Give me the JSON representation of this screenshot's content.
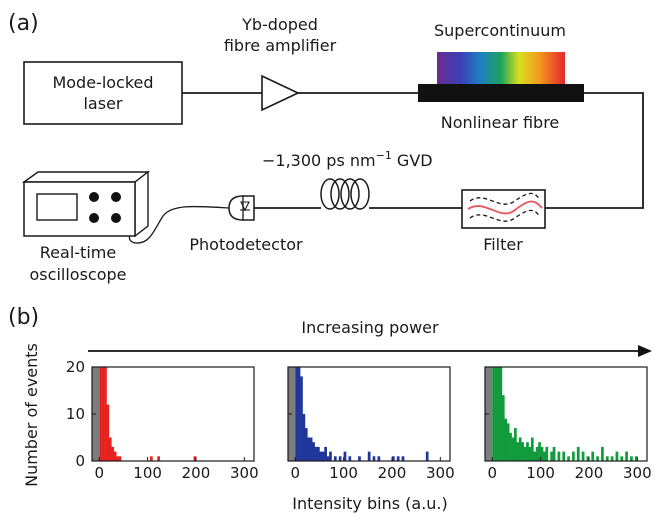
{
  "panel_a": {
    "label": "(a)",
    "laser": "Mode-locked\nlaser",
    "amplifier": "Yb-doped\nfibre amplifier",
    "supercontinuum": "Supercontinuum",
    "nonlinear_fibre": "Nonlinear fibre",
    "gvd_prefix": "−1,300 ps nm",
    "gvd_exp": "−1",
    "gvd_suffix": " GVD",
    "oscilloscope": "Real-time\noscilloscope",
    "photodetector": "Photodetector",
    "filter": "Filter"
  },
  "panel_b": {
    "label": "(b)",
    "arrow_label": "Increasing power",
    "ylabel": "Number of events",
    "xlabel": "Intensity bins (a.u.)"
  },
  "chart_data": [
    {
      "type": "bar",
      "series_color": "#e8231f",
      "xlim": [
        -15,
        320
      ],
      "ylim": [
        0,
        20
      ],
      "xticks": [
        "0",
        "100",
        "200",
        "300"
      ],
      "yticks": [
        "0",
        "10",
        "20"
      ],
      "gray_band": [
        -15,
        0
      ],
      "bin_width": 5,
      "x": [
        0,
        5,
        10,
        15,
        20,
        25,
        30,
        35,
        40,
        105,
        120,
        195
      ],
      "y": [
        20,
        20,
        20,
        12,
        5,
        3,
        2,
        1,
        1,
        1,
        1,
        1
      ]
    },
    {
      "type": "bar",
      "series_color": "#20369a",
      "xlim": [
        -15,
        320
      ],
      "ylim": [
        0,
        20
      ],
      "xticks": [
        "0",
        "100",
        "200",
        "300"
      ],
      "yticks": [
        "0",
        "10",
        "20"
      ],
      "gray_band": [
        -15,
        0
      ],
      "bin_width": 5,
      "x": [
        0,
        5,
        10,
        15,
        20,
        25,
        30,
        35,
        40,
        45,
        50,
        55,
        60,
        65,
        70,
        80,
        90,
        100,
        110,
        130,
        150,
        160,
        170,
        200,
        210,
        220,
        270
      ],
      "y": [
        20,
        20,
        18,
        10,
        7,
        5,
        5,
        4,
        3,
        3,
        2,
        2,
        3,
        1,
        2,
        1,
        1,
        2,
        1,
        1,
        2,
        1,
        1,
        1,
        1,
        1,
        2
      ]
    },
    {
      "type": "bar",
      "series_color": "#129b3c",
      "xlim": [
        -15,
        320
      ],
      "ylim": [
        0,
        20
      ],
      "xticks": [
        "0",
        "100",
        "200",
        "300"
      ],
      "yticks": [
        "0",
        "10",
        "20"
      ],
      "gray_band": [
        -15,
        0
      ],
      "bin_width": 5,
      "x": [
        0,
        5,
        10,
        15,
        20,
        25,
        30,
        35,
        40,
        45,
        50,
        55,
        60,
        65,
        70,
        75,
        80,
        85,
        90,
        95,
        100,
        105,
        110,
        120,
        125,
        135,
        145,
        155,
        165,
        175,
        185,
        195,
        205,
        215,
        225,
        235,
        245,
        255,
        265,
        275,
        285,
        295
      ],
      "y": [
        20,
        20,
        20,
        20,
        14,
        9,
        8,
        6,
        5,
        7,
        4,
        5,
        4,
        3,
        4,
        3,
        5,
        2,
        3,
        4,
        3,
        2,
        3,
        2,
        3,
        2,
        2,
        1,
        2,
        3,
        2,
        1,
        2,
        1,
        3,
        1,
        1,
        2,
        1,
        2,
        1,
        1
      ]
    }
  ]
}
